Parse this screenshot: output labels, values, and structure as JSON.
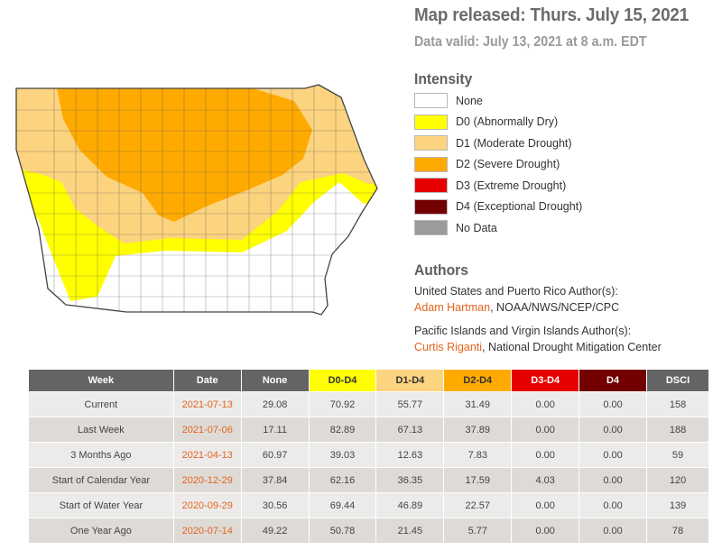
{
  "header": {
    "released": "Map released: Thurs. July 15, 2021",
    "valid": "Data valid: July 13, 2021 at 8 a.m. EDT"
  },
  "legend": {
    "title": "Intensity",
    "items": [
      {
        "label": "None",
        "color": "#ffffff"
      },
      {
        "label": "D0 (Abnormally Dry)",
        "color": "#ffff00"
      },
      {
        "label": "D1 (Moderate Drought)",
        "color": "#fcd37f"
      },
      {
        "label": "D2 (Severe Drought)",
        "color": "#ffaa00"
      },
      {
        "label": "D3 (Extreme Drought)",
        "color": "#e60000"
      },
      {
        "label": "D4 (Exceptional Drought)",
        "color": "#730000"
      },
      {
        "label": "No Data",
        "color": "#9b9b9b"
      }
    ]
  },
  "authors": {
    "title": "Authors",
    "us_heading": "United States and Puerto Rico Author(s):",
    "us_name": "Adam Hartman",
    "us_affil": ", NOAA/NWS/NCEP/CPC",
    "pi_heading": "Pacific Islands and Virgin Islands Author(s):",
    "pi_name": "Curtis Riganti",
    "pi_affil": ", National Drought Mitigation Center"
  },
  "table": {
    "headers": [
      {
        "label": "Week",
        "bg": "#646464",
        "fg": "#ffffff"
      },
      {
        "label": "Date",
        "bg": "#646464",
        "fg": "#ffffff"
      },
      {
        "label": "None",
        "bg": "#646464",
        "fg": "#ffffff"
      },
      {
        "label": "D0-D4",
        "bg": "#ffff00",
        "fg": "#333333"
      },
      {
        "label": "D1-D4",
        "bg": "#fcd37f",
        "fg": "#333333"
      },
      {
        "label": "D2-D4",
        "bg": "#ffaa00",
        "fg": "#333333"
      },
      {
        "label": "D3-D4",
        "bg": "#e60000",
        "fg": "#ffffff"
      },
      {
        "label": "D4",
        "bg": "#730000",
        "fg": "#ffffff"
      },
      {
        "label": "DSCI",
        "bg": "#646464",
        "fg": "#ffffff"
      }
    ],
    "rows": [
      [
        "Current",
        "2021-07-13",
        "29.08",
        "70.92",
        "55.77",
        "31.49",
        "0.00",
        "0.00",
        "158"
      ],
      [
        "Last Week",
        "2021-07-06",
        "17.11",
        "82.89",
        "67.13",
        "37.89",
        "0.00",
        "0.00",
        "188"
      ],
      [
        "3 Months Ago",
        "2021-04-13",
        "60.97",
        "39.03",
        "12.63",
        "7.83",
        "0.00",
        "0.00",
        "59"
      ],
      [
        "Start of Calendar Year",
        "2020-12-29",
        "37.84",
        "62.16",
        "36.35",
        "17.59",
        "4.03",
        "0.00",
        "120"
      ],
      [
        "Start of Water Year",
        "2020-09-29",
        "30.56",
        "69.44",
        "46.89",
        "22.57",
        "0.00",
        "0.00",
        "139"
      ],
      [
        "One Year Ago",
        "2020-07-14",
        "49.22",
        "50.78",
        "21.45",
        "5.77",
        "0.00",
        "0.00",
        "78"
      ]
    ]
  }
}
